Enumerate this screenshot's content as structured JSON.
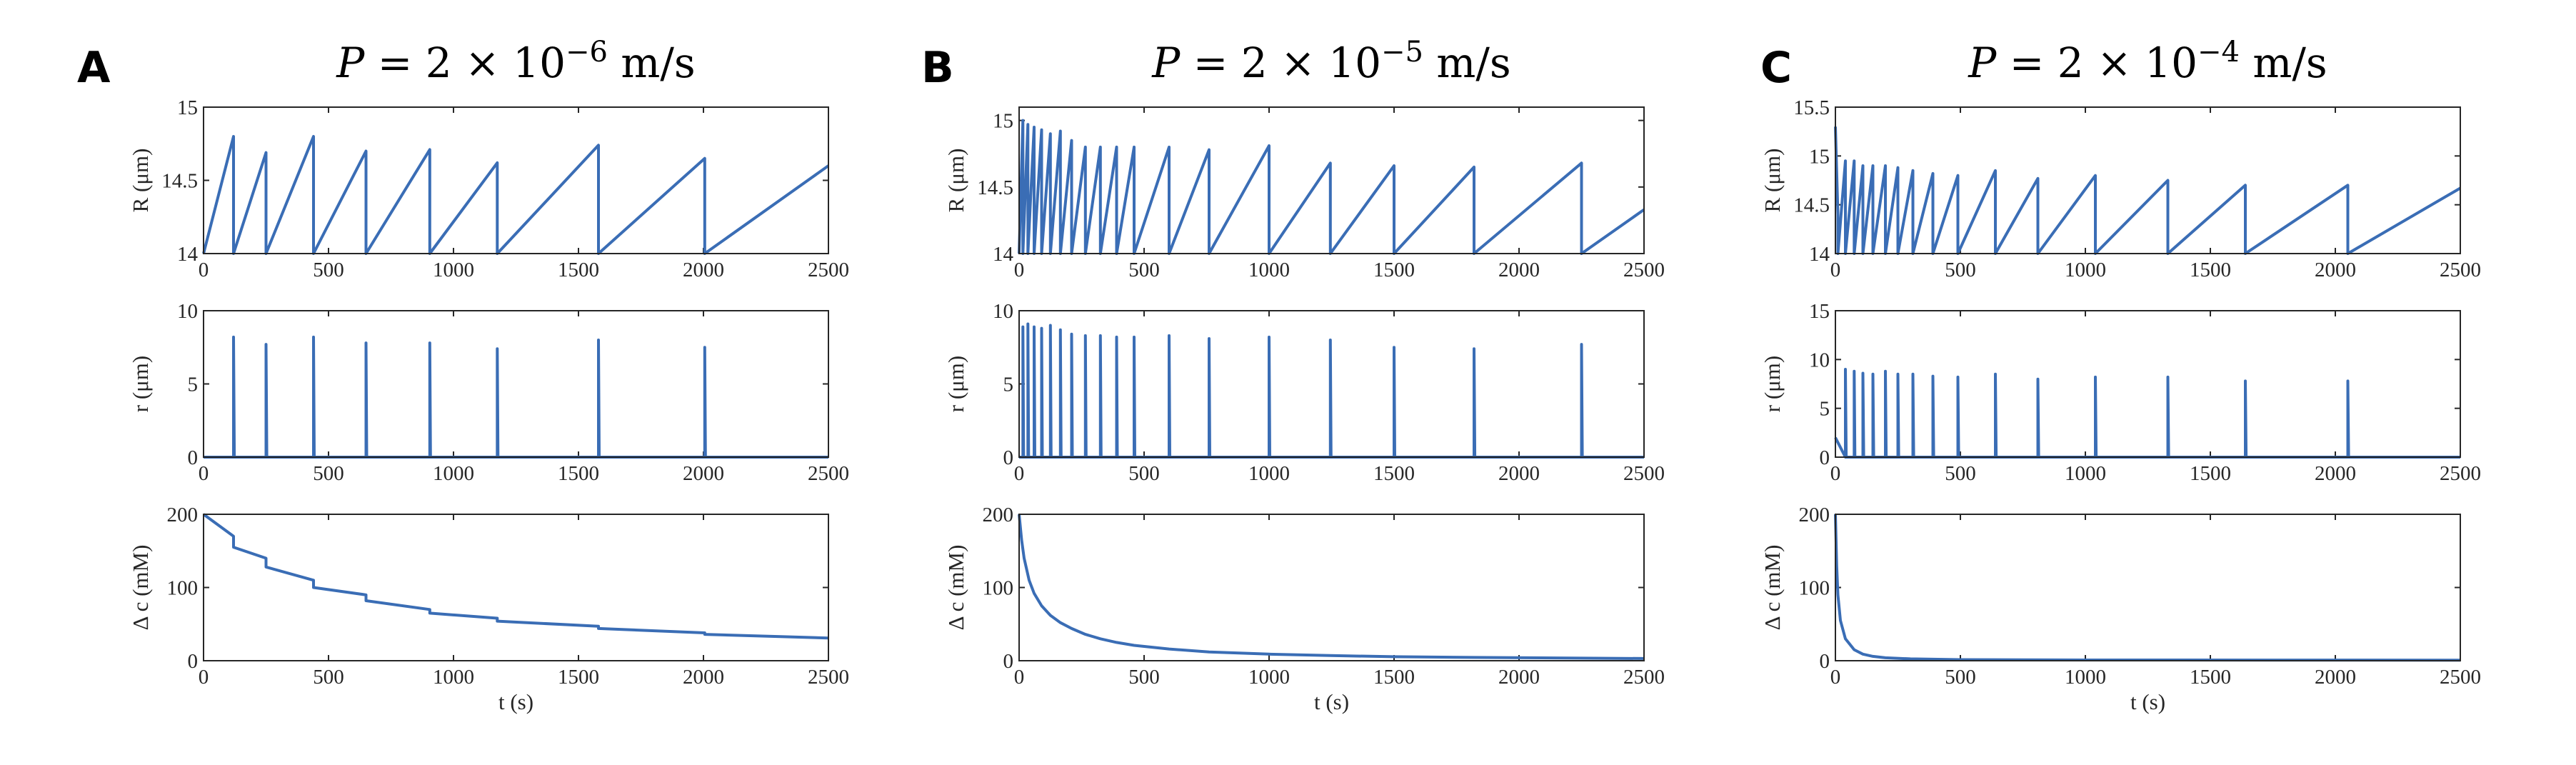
{
  "figure_panels": [
    {
      "letter": "A",
      "title": {
        "prefix": "P",
        "eq": " = 2 × 10",
        "exp": "−6",
        "unit": " m/s"
      },
      "charts": [
        {
          "key": "R",
          "type": "line",
          "ylabel": "R (μm)",
          "xlabel": "",
          "xlim": [
            0,
            2500
          ],
          "ylim": [
            14,
            15
          ],
          "xticks": [
            "0",
            "500",
            "1000",
            "1500",
            "2000",
            "2500"
          ],
          "yticks": [
            {
              "v": 14,
              "t": "14"
            },
            {
              "v": 14.5,
              "t": "14.5"
            },
            {
              "v": 15,
              "t": "15"
            }
          ],
          "series": [
            {
              "name": "R",
              "kind": "sawtooth",
              "start": 14.0,
              "base": 14.0,
              "teeth": [
                [
                  120,
                  14.8
                ],
                [
                  250,
                  14.69
                ],
                [
                  440,
                  14.8
                ],
                [
                  650,
                  14.7
                ],
                [
                  905,
                  14.71
                ],
                [
                  1175,
                  14.62
                ],
                [
                  1580,
                  14.74
                ],
                [
                  2005,
                  14.65
                ]
              ],
              "end": [
                2500,
                14.6
              ]
            }
          ]
        },
        {
          "key": "r",
          "type": "line",
          "ylabel": "r (μm)",
          "xlabel": "",
          "xlim": [
            0,
            2500
          ],
          "ylim": [
            0,
            10
          ],
          "xticks": [
            "0",
            "500",
            "1000",
            "1500",
            "2000",
            "2500"
          ],
          "yticks": [
            {
              "v": 0,
              "t": "0"
            },
            {
              "v": 5,
              "t": "5"
            },
            {
              "v": 10,
              "t": "10"
            }
          ],
          "series": [
            {
              "name": "r",
              "kind": "spikes",
              "spikes": [
                [
                  120,
                  8.2
                ],
                [
                  250,
                  7.7
                ],
                [
                  440,
                  8.2
                ],
                [
                  650,
                  7.8
                ],
                [
                  905,
                  7.8
                ],
                [
                  1175,
                  7.4
                ],
                [
                  1580,
                  8.0
                ],
                [
                  2005,
                  7.5
                ]
              ]
            }
          ]
        },
        {
          "key": "dc",
          "type": "line",
          "ylabel": "Δ c (mM)",
          "xlabel": "t (s)",
          "xlim": [
            0,
            2500
          ],
          "ylim": [
            0,
            200
          ],
          "xticks": [
            "0",
            "500",
            "1000",
            "1500",
            "2000",
            "2500"
          ],
          "yticks": [
            {
              "v": 0,
              "t": "0"
            },
            {
              "v": 100,
              "t": "100"
            },
            {
              "v": 200,
              "t": "200"
            }
          ],
          "series": [
            {
              "name": "Δc",
              "kind": "steps",
              "start": [
                0,
                200
              ],
              "segments": [
                [
                  120,
                  170,
                  155
                ],
                [
                  250,
                  140,
                  128
                ],
                [
                  440,
                  110,
                  100
                ],
                [
                  650,
                  90,
                  82
                ],
                [
                  905,
                  70,
                  65
                ],
                [
                  1175,
                  58,
                  54
                ],
                [
                  1580,
                  47,
                  44
                ],
                [
                  2005,
                  38,
                  36
                ]
              ],
              "end": [
                2500,
                31
              ]
            }
          ]
        }
      ]
    },
    {
      "letter": "B",
      "title": {
        "prefix": "P",
        "eq": " = 2 × 10",
        "exp": "−5",
        "unit": " m/s"
      },
      "charts": [
        {
          "key": "R",
          "type": "line",
          "ylabel": "R (μm)",
          "xlabel": "",
          "xlim": [
            0,
            2500
          ],
          "ylim": [
            14,
            15.1
          ],
          "xticks": [
            "0",
            "500",
            "1000",
            "1500",
            "2000",
            "2500"
          ],
          "yticks": [
            {
              "v": 14,
              "t": "14"
            },
            {
              "v": 14.5,
              "t": "14.5"
            },
            {
              "v": 15,
              "t": "15"
            }
          ],
          "series": [
            {
              "name": "R",
              "kind": "sawtooth",
              "start": 14.0,
              "base": 14.0,
              "teeth": [
                [
                  15,
                  15.0
                ],
                [
                  35,
                  14.97
                ],
                [
                  60,
                  14.95
                ],
                [
                  90,
                  14.93
                ],
                [
                  125,
                  14.9
                ],
                [
                  165,
                  14.92
                ],
                [
                  210,
                  14.85
                ],
                [
                  265,
                  14.8
                ],
                [
                  325,
                  14.8
                ],
                [
                  390,
                  14.8
                ],
                [
                  460,
                  14.8
                ],
                [
                  600,
                  14.8
                ],
                [
                  760,
                  14.78
                ],
                [
                  1000,
                  14.81
                ],
                [
                  1245,
                  14.68
                ],
                [
                  1500,
                  14.66
                ],
                [
                  1820,
                  14.65
                ],
                [
                  2250,
                  14.68
                ]
              ],
              "end": [
                2500,
                14.33
              ]
            }
          ]
        },
        {
          "key": "r",
          "type": "line",
          "ylabel": "r (μm)",
          "xlabel": "",
          "xlim": [
            0,
            2500
          ],
          "ylim": [
            0,
            10
          ],
          "xticks": [
            "0",
            "500",
            "1000",
            "1500",
            "2000",
            "2500"
          ],
          "yticks": [
            {
              "v": 0,
              "t": "0"
            },
            {
              "v": 5,
              "t": "5"
            },
            {
              "v": 10,
              "t": "10"
            }
          ],
          "series": [
            {
              "name": "r",
              "kind": "spikes",
              "spikes": [
                [
                  15,
                  8.9
                ],
                [
                  35,
                  9.1
                ],
                [
                  60,
                  8.9
                ],
                [
                  90,
                  8.8
                ],
                [
                  125,
                  9.0
                ],
                [
                  165,
                  8.7
                ],
                [
                  210,
                  8.4
                ],
                [
                  265,
                  8.3
                ],
                [
                  325,
                  8.3
                ],
                [
                  390,
                  8.2
                ],
                [
                  460,
                  8.2
                ],
                [
                  600,
                  8.3
                ],
                [
                  760,
                  8.1
                ],
                [
                  1000,
                  8.2
                ],
                [
                  1245,
                  8.0
                ],
                [
                  1500,
                  7.5
                ],
                [
                  1820,
                  7.4
                ],
                [
                  2250,
                  7.7
                ]
              ]
            }
          ]
        },
        {
          "key": "dc",
          "type": "line",
          "ylabel": "Δ c (mM)",
          "xlabel": "t (s)",
          "xlim": [
            0,
            2500
          ],
          "ylim": [
            0,
            200
          ],
          "xticks": [
            "0",
            "500",
            "1000",
            "1500",
            "2000",
            "2500"
          ],
          "yticks": [
            {
              "v": 0,
              "t": "0"
            },
            {
              "v": 100,
              "t": "100"
            },
            {
              "v": 200,
              "t": "200"
            }
          ],
          "series": [
            {
              "name": "Δc",
              "kind": "curve",
              "points": [
                [
                  0,
                  200
                ],
                [
                  10,
                  165
                ],
                [
                  20,
                  140
                ],
                [
                  40,
                  110
                ],
                [
                  60,
                  92
                ],
                [
                  90,
                  75
                ],
                [
                  125,
                  62
                ],
                [
                  165,
                  52
                ],
                [
                  210,
                  44
                ],
                [
                  265,
                  36
                ],
                [
                  325,
                  30
                ],
                [
                  390,
                  25
                ],
                [
                  460,
                  21
                ],
                [
                  600,
                  16
                ],
                [
                  760,
                  12
                ],
                [
                  1000,
                  9
                ],
                [
                  1245,
                  7
                ],
                [
                  1500,
                  5.5
                ],
                [
                  1820,
                  4.5
                ],
                [
                  2250,
                  3.5
                ],
                [
                  2500,
                  3
                ]
              ]
            }
          ]
        }
      ]
    },
    {
      "letter": "C",
      "title": {
        "prefix": "P",
        "eq": " = 2 × 10",
        "exp": "−4",
        "unit": " m/s"
      },
      "charts": [
        {
          "key": "R",
          "type": "line",
          "ylabel": "R (μm)",
          "xlabel": "",
          "xlim": [
            0,
            2500
          ],
          "ylim": [
            14,
            15.5
          ],
          "xticks": [
            "0",
            "500",
            "1000",
            "1500",
            "2000",
            "2500"
          ],
          "yticks": [
            {
              "v": 14,
              "t": "14"
            },
            {
              "v": 14.5,
              "t": "14.5"
            },
            {
              "v": 15,
              "t": "15"
            },
            {
              "v": 15.5,
              "t": "15.5"
            }
          ],
          "series": [
            {
              "name": "R",
              "kind": "sawtooth",
              "start": 15.3,
              "base": 14.0,
              "teeth": [
                [
                  10,
                  14.4
                ],
                [
                  40,
                  14.95
                ],
                [
                  75,
                  14.95
                ],
                [
                  110,
                  14.9
                ],
                [
                  150,
                  14.9
                ],
                [
                  200,
                  14.9
                ],
                [
                  250,
                  14.88
                ],
                [
                  310,
                  14.85
                ],
                [
                  390,
                  14.82
                ],
                [
                  490,
                  14.8
                ],
                [
                  640,
                  14.85
                ],
                [
                  810,
                  14.77
                ],
                [
                  1040,
                  14.8
                ],
                [
                  1330,
                  14.75
                ],
                [
                  1640,
                  14.7
                ],
                [
                  2050,
                  14.7
                ]
              ],
              "end": [
                2500,
                14.67
              ]
            }
          ]
        },
        {
          "key": "r",
          "type": "line",
          "ylabel": "r (μm)",
          "xlabel": "",
          "xlim": [
            0,
            2500
          ],
          "ylim": [
            0,
            15
          ],
          "xticks": [
            "0",
            "500",
            "1000",
            "1500",
            "2000",
            "2500"
          ],
          "yticks": [
            {
              "v": 0,
              "t": "0"
            },
            {
              "v": 5,
              "t": "5"
            },
            {
              "v": 10,
              "t": "10"
            },
            {
              "v": 15,
              "t": "15"
            }
          ],
          "series": [
            {
              "name": "r",
              "kind": "spikes",
              "initial": [
                [
                  0,
                  2
                ],
                [
                  20,
                  1
                ]
              ],
              "spikes": [
                [
                  40,
                  9.0
                ],
                [
                  75,
                  8.8
                ],
                [
                  110,
                  8.6
                ],
                [
                  150,
                  8.5
                ],
                [
                  200,
                  8.8
                ],
                [
                  250,
                  8.5
                ],
                [
                  310,
                  8.5
                ],
                [
                  390,
                  8.3
                ],
                [
                  490,
                  8.2
                ],
                [
                  640,
                  8.5
                ],
                [
                  810,
                  8.0
                ],
                [
                  1040,
                  8.2
                ],
                [
                  1330,
                  8.2
                ],
                [
                  1640,
                  7.8
                ],
                [
                  2050,
                  7.8
                ]
              ]
            }
          ]
        },
        {
          "key": "dc",
          "type": "line",
          "ylabel": "Δ c (mM)",
          "xlabel": "t (s)",
          "xlim": [
            0,
            2500
          ],
          "ylim": [
            0,
            200
          ],
          "xticks": [
            "0",
            "500",
            "1000",
            "1500",
            "2000",
            "2500"
          ],
          "yticks": [
            {
              "v": 0,
              "t": "0"
            },
            {
              "v": 100,
              "t": "100"
            },
            {
              "v": 200,
              "t": "200"
            }
          ],
          "series": [
            {
              "name": "Δc",
              "kind": "curve",
              "points": [
                [
                  0,
                  200
                ],
                [
                  5,
                  130
                ],
                [
                  10,
                  90
                ],
                [
                  20,
                  55
                ],
                [
                  40,
                  30
                ],
                [
                  75,
                  15
                ],
                [
                  110,
                  9
                ],
                [
                  150,
                  6
                ],
                [
                  200,
                  4
                ],
                [
                  300,
                  2.5
                ],
                [
                  500,
                  1.5
                ],
                [
                  1000,
                  1
                ],
                [
                  2500,
                  0.8
                ]
              ]
            }
          ]
        }
      ]
    }
  ],
  "colors": {
    "line": "#3a6db5",
    "axes": "#262626"
  }
}
